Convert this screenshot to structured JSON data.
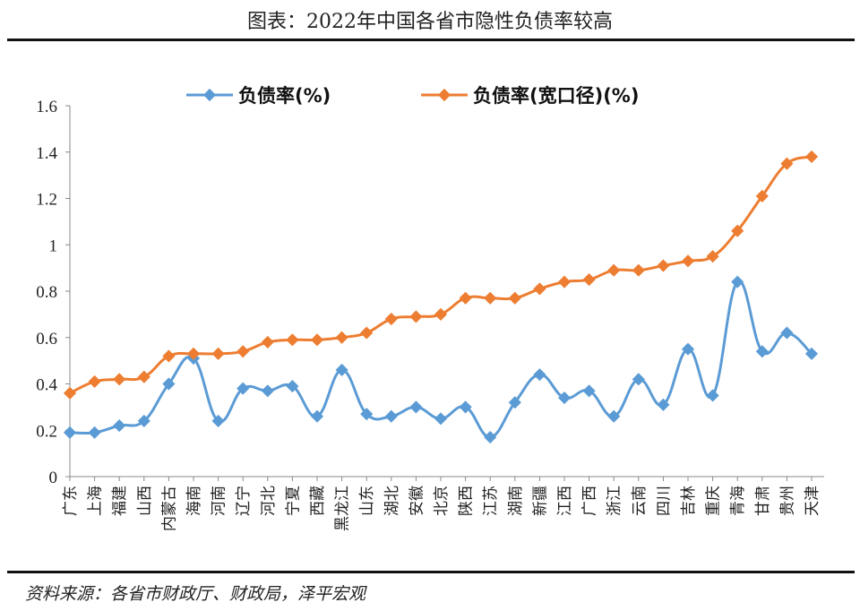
{
  "title": "图表：2022年中国各省市隐性负债率较高",
  "source": "资料来源：各省市财政厅、财政局，泽平宏观",
  "chart_data": {
    "type": "line",
    "title": "图表：2022年中国各省市隐性负债率较高",
    "xlabel": "",
    "ylabel": "",
    "ylim": [
      0,
      1.6
    ],
    "yticks": [
      "0",
      "0.2",
      "0.4",
      "0.6",
      "0.8",
      "1",
      "1.2",
      "1.4",
      "1.6"
    ],
    "grid": false,
    "legend": "top-center",
    "categories": [
      "广东",
      "上海",
      "福建",
      "山西",
      "内蒙古",
      "海南",
      "河南",
      "辽宁",
      "河北",
      "宁夏",
      "西藏",
      "黑龙江",
      "山东",
      "湖北",
      "安徽",
      "北京",
      "陕西",
      "江苏",
      "湖南",
      "新疆",
      "江西",
      "广西",
      "浙江",
      "云南",
      "四川",
      "吉林",
      "重庆",
      "青海",
      "甘肃",
      "贵州",
      "天津"
    ],
    "series": [
      {
        "name": "负债率(%)",
        "color": "#5B9BD5",
        "smooth": true,
        "values": [
          0.19,
          0.19,
          0.22,
          0.24,
          0.4,
          0.51,
          0.24,
          0.38,
          0.37,
          0.39,
          0.26,
          0.46,
          0.27,
          0.26,
          0.3,
          0.25,
          0.3,
          0.17,
          0.32,
          0.44,
          0.34,
          0.37,
          0.26,
          0.42,
          0.31,
          0.55,
          0.35,
          0.84,
          0.54,
          0.62,
          0.53
        ]
      },
      {
        "name": "负债率(宽口径)(%)",
        "color": "#ED7D31",
        "smooth": true,
        "values": [
          0.36,
          0.41,
          0.42,
          0.43,
          0.52,
          0.53,
          0.53,
          0.54,
          0.58,
          0.59,
          0.59,
          0.6,
          0.62,
          0.68,
          0.69,
          0.7,
          0.77,
          0.77,
          0.77,
          0.81,
          0.84,
          0.85,
          0.89,
          0.89,
          0.91,
          0.93,
          0.95,
          1.06,
          1.21,
          1.35,
          1.38
        ]
      }
    ]
  }
}
